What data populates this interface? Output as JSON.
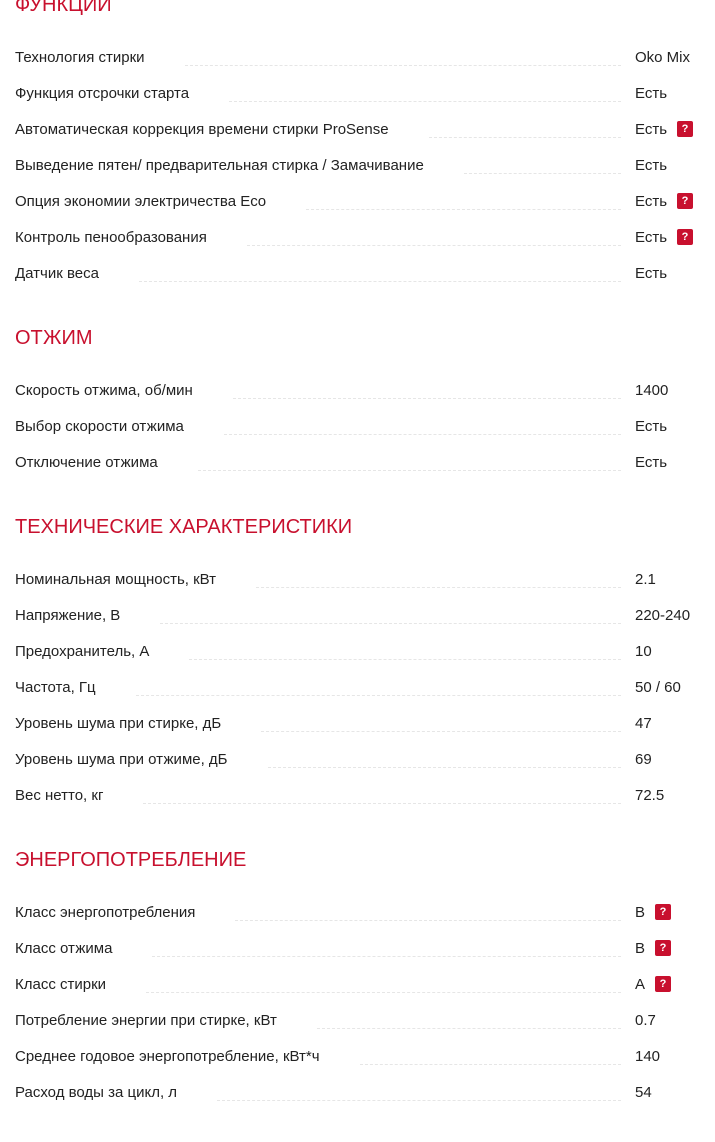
{
  "accent_color": "#c8102e",
  "help_icon": "question-mark-icon",
  "sections": [
    {
      "title": "ФУНКЦИИ",
      "rows": [
        {
          "label": "Технология стирки",
          "value": "Oko Mix",
          "help": false
        },
        {
          "label": "Функция отсрочки старта",
          "value": "Есть",
          "help": false
        },
        {
          "label": "Автоматическая коррекция времени стирки ProSense",
          "value": "Есть",
          "help": true
        },
        {
          "label": "Выведение пятен/ предварительная стирка / Замачивание",
          "value": "Есть",
          "help": false
        },
        {
          "label": "Опция экономии электричества Eco",
          "value": "Есть",
          "help": true
        },
        {
          "label": "Контроль пенообразования",
          "value": "Есть",
          "help": true
        },
        {
          "label": "Датчик веса",
          "value": "Есть",
          "help": false
        }
      ]
    },
    {
      "title": "ОТЖИМ",
      "rows": [
        {
          "label": "Скорость отжима, об/мин",
          "value": "1400",
          "help": false
        },
        {
          "label": "Выбор скорости отжима",
          "value": "Есть",
          "help": false
        },
        {
          "label": "Отключение отжима",
          "value": "Есть",
          "help": false
        }
      ]
    },
    {
      "title": "ТЕХНИЧЕСКИЕ ХАРАКТЕРИСТИКИ",
      "rows": [
        {
          "label": "Номинальная мощность, кВт",
          "value": "2.1",
          "help": false
        },
        {
          "label": "Напряжение, В",
          "value": "220-240",
          "help": false
        },
        {
          "label": "Предохранитель, А",
          "value": "10",
          "help": false
        },
        {
          "label": "Частота, Гц",
          "value": "50 / 60",
          "help": false
        },
        {
          "label": "Уровень шума при стирке, дБ",
          "value": "47",
          "help": false
        },
        {
          "label": "Уровень шума при отжиме, дБ",
          "value": "69",
          "help": false
        },
        {
          "label": "Вес нетто, кг",
          "value": "72.5",
          "help": false
        }
      ]
    },
    {
      "title": "ЭНЕРГОПОТРЕБЛЕНИЕ",
      "rows": [
        {
          "label": "Класс энергопотребления",
          "value": "B",
          "help": true
        },
        {
          "label": "Класс отжима",
          "value": "B",
          "help": true
        },
        {
          "label": "Класс стирки",
          "value": "A",
          "help": true
        },
        {
          "label": "Потребление энергии при стирке, кВт",
          "value": "0.7",
          "help": false
        },
        {
          "label": "Среднее годовое энергопотребление, кВт*ч",
          "value": "140",
          "help": false
        },
        {
          "label": "Расход воды за цикл, л",
          "value": "54",
          "help": false
        }
      ]
    }
  ]
}
